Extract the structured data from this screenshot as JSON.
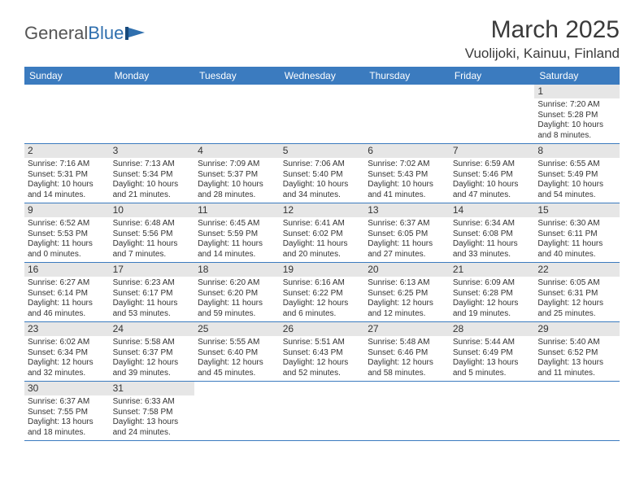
{
  "logo": {
    "text_gray": "General",
    "text_blue": "Blue"
  },
  "title": "March 2025",
  "location": "Vuolijoki, Kainuu, Finland",
  "header_bg": "#3b7bbf",
  "border_color": "#3b7bbf",
  "daynum_bg": "#e6e6e6",
  "weekdays": [
    "Sunday",
    "Monday",
    "Tuesday",
    "Wednesday",
    "Thursday",
    "Friday",
    "Saturday"
  ],
  "weeks": [
    [
      null,
      null,
      null,
      null,
      null,
      null,
      {
        "n": "1",
        "sr": "Sunrise: 7:20 AM",
        "ss": "Sunset: 5:28 PM",
        "d1": "Daylight: 10 hours",
        "d2": "and 8 minutes."
      }
    ],
    [
      {
        "n": "2",
        "sr": "Sunrise: 7:16 AM",
        "ss": "Sunset: 5:31 PM",
        "d1": "Daylight: 10 hours",
        "d2": "and 14 minutes."
      },
      {
        "n": "3",
        "sr": "Sunrise: 7:13 AM",
        "ss": "Sunset: 5:34 PM",
        "d1": "Daylight: 10 hours",
        "d2": "and 21 minutes."
      },
      {
        "n": "4",
        "sr": "Sunrise: 7:09 AM",
        "ss": "Sunset: 5:37 PM",
        "d1": "Daylight: 10 hours",
        "d2": "and 28 minutes."
      },
      {
        "n": "5",
        "sr": "Sunrise: 7:06 AM",
        "ss": "Sunset: 5:40 PM",
        "d1": "Daylight: 10 hours",
        "d2": "and 34 minutes."
      },
      {
        "n": "6",
        "sr": "Sunrise: 7:02 AM",
        "ss": "Sunset: 5:43 PM",
        "d1": "Daylight: 10 hours",
        "d2": "and 41 minutes."
      },
      {
        "n": "7",
        "sr": "Sunrise: 6:59 AM",
        "ss": "Sunset: 5:46 PM",
        "d1": "Daylight: 10 hours",
        "d2": "and 47 minutes."
      },
      {
        "n": "8",
        "sr": "Sunrise: 6:55 AM",
        "ss": "Sunset: 5:49 PM",
        "d1": "Daylight: 10 hours",
        "d2": "and 54 minutes."
      }
    ],
    [
      {
        "n": "9",
        "sr": "Sunrise: 6:52 AM",
        "ss": "Sunset: 5:53 PM",
        "d1": "Daylight: 11 hours",
        "d2": "and 0 minutes."
      },
      {
        "n": "10",
        "sr": "Sunrise: 6:48 AM",
        "ss": "Sunset: 5:56 PM",
        "d1": "Daylight: 11 hours",
        "d2": "and 7 minutes."
      },
      {
        "n": "11",
        "sr": "Sunrise: 6:45 AM",
        "ss": "Sunset: 5:59 PM",
        "d1": "Daylight: 11 hours",
        "d2": "and 14 minutes."
      },
      {
        "n": "12",
        "sr": "Sunrise: 6:41 AM",
        "ss": "Sunset: 6:02 PM",
        "d1": "Daylight: 11 hours",
        "d2": "and 20 minutes."
      },
      {
        "n": "13",
        "sr": "Sunrise: 6:37 AM",
        "ss": "Sunset: 6:05 PM",
        "d1": "Daylight: 11 hours",
        "d2": "and 27 minutes."
      },
      {
        "n": "14",
        "sr": "Sunrise: 6:34 AM",
        "ss": "Sunset: 6:08 PM",
        "d1": "Daylight: 11 hours",
        "d2": "and 33 minutes."
      },
      {
        "n": "15",
        "sr": "Sunrise: 6:30 AM",
        "ss": "Sunset: 6:11 PM",
        "d1": "Daylight: 11 hours",
        "d2": "and 40 minutes."
      }
    ],
    [
      {
        "n": "16",
        "sr": "Sunrise: 6:27 AM",
        "ss": "Sunset: 6:14 PM",
        "d1": "Daylight: 11 hours",
        "d2": "and 46 minutes."
      },
      {
        "n": "17",
        "sr": "Sunrise: 6:23 AM",
        "ss": "Sunset: 6:17 PM",
        "d1": "Daylight: 11 hours",
        "d2": "and 53 minutes."
      },
      {
        "n": "18",
        "sr": "Sunrise: 6:20 AM",
        "ss": "Sunset: 6:20 PM",
        "d1": "Daylight: 11 hours",
        "d2": "and 59 minutes."
      },
      {
        "n": "19",
        "sr": "Sunrise: 6:16 AM",
        "ss": "Sunset: 6:22 PM",
        "d1": "Daylight: 12 hours",
        "d2": "and 6 minutes."
      },
      {
        "n": "20",
        "sr": "Sunrise: 6:13 AM",
        "ss": "Sunset: 6:25 PM",
        "d1": "Daylight: 12 hours",
        "d2": "and 12 minutes."
      },
      {
        "n": "21",
        "sr": "Sunrise: 6:09 AM",
        "ss": "Sunset: 6:28 PM",
        "d1": "Daylight: 12 hours",
        "d2": "and 19 minutes."
      },
      {
        "n": "22",
        "sr": "Sunrise: 6:05 AM",
        "ss": "Sunset: 6:31 PM",
        "d1": "Daylight: 12 hours",
        "d2": "and 25 minutes."
      }
    ],
    [
      {
        "n": "23",
        "sr": "Sunrise: 6:02 AM",
        "ss": "Sunset: 6:34 PM",
        "d1": "Daylight: 12 hours",
        "d2": "and 32 minutes."
      },
      {
        "n": "24",
        "sr": "Sunrise: 5:58 AM",
        "ss": "Sunset: 6:37 PM",
        "d1": "Daylight: 12 hours",
        "d2": "and 39 minutes."
      },
      {
        "n": "25",
        "sr": "Sunrise: 5:55 AM",
        "ss": "Sunset: 6:40 PM",
        "d1": "Daylight: 12 hours",
        "d2": "and 45 minutes."
      },
      {
        "n": "26",
        "sr": "Sunrise: 5:51 AM",
        "ss": "Sunset: 6:43 PM",
        "d1": "Daylight: 12 hours",
        "d2": "and 52 minutes."
      },
      {
        "n": "27",
        "sr": "Sunrise: 5:48 AM",
        "ss": "Sunset: 6:46 PM",
        "d1": "Daylight: 12 hours",
        "d2": "and 58 minutes."
      },
      {
        "n": "28",
        "sr": "Sunrise: 5:44 AM",
        "ss": "Sunset: 6:49 PM",
        "d1": "Daylight: 13 hours",
        "d2": "and 5 minutes."
      },
      {
        "n": "29",
        "sr": "Sunrise: 5:40 AM",
        "ss": "Sunset: 6:52 PM",
        "d1": "Daylight: 13 hours",
        "d2": "and 11 minutes."
      }
    ],
    [
      {
        "n": "30",
        "sr": "Sunrise: 6:37 AM",
        "ss": "Sunset: 7:55 PM",
        "d1": "Daylight: 13 hours",
        "d2": "and 18 minutes."
      },
      {
        "n": "31",
        "sr": "Sunrise: 6:33 AM",
        "ss": "Sunset: 7:58 PM",
        "d1": "Daylight: 13 hours",
        "d2": "and 24 minutes."
      },
      null,
      null,
      null,
      null,
      null
    ]
  ]
}
